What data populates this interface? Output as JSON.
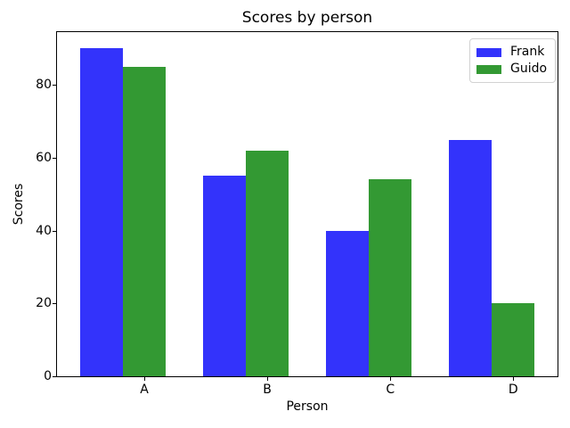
{
  "figure": {
    "title": "Scores by person",
    "xlabel": "Person",
    "ylabel": "Scores"
  },
  "chart_data": {
    "type": "bar",
    "title": "Scores by person",
    "xlabel": "Person",
    "ylabel": "Scores",
    "categories": [
      "A",
      "B",
      "C",
      "D"
    ],
    "series": [
      {
        "name": "Frank",
        "color": "#3333fb",
        "values": [
          90,
          55,
          40,
          65
        ]
      },
      {
        "name": "Guido",
        "color": "#339933",
        "values": [
          85,
          62,
          54,
          20
        ]
      }
    ],
    "yticks": [
      0,
      20,
      40,
      60,
      80
    ],
    "ylim": [
      0,
      94.5
    ],
    "xlim": [
      -0.71,
      3.36
    ],
    "bar_width": 0.35,
    "series_offsets": [
      -0.35,
      0
    ],
    "grid": false,
    "legend_position": "upper right",
    "colors": {
      "axis": "#000000",
      "background": "#ffffff",
      "legend_border": "#d2d2d2"
    }
  }
}
